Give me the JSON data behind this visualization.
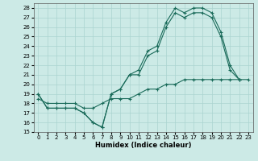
{
  "xlabel": "Humidex (Indice chaleur)",
  "bg_color": "#cceae6",
  "grid_color": "#aad4d0",
  "line_color": "#1a6b5a",
  "xlim": [
    -0.5,
    23.5
  ],
  "ylim": [
    15,
    28.5
  ],
  "xticks": [
    0,
    1,
    2,
    3,
    4,
    5,
    6,
    7,
    8,
    9,
    10,
    11,
    12,
    13,
    14,
    15,
    16,
    17,
    18,
    19,
    20,
    21,
    22,
    23
  ],
  "yticks": [
    15,
    16,
    17,
    18,
    19,
    20,
    21,
    22,
    23,
    24,
    25,
    26,
    27,
    28
  ],
  "series": [
    {
      "x": [
        0,
        1,
        2,
        3,
        4,
        5,
        6,
        7,
        8,
        9,
        10,
        11,
        12,
        13,
        14,
        15,
        16,
        17,
        18,
        19,
        20,
        21,
        22
      ],
      "y": [
        19,
        17.5,
        17.5,
        17.5,
        17.5,
        17,
        16,
        15.5,
        19,
        19.5,
        21,
        21.5,
        23.5,
        24,
        26.5,
        28,
        27.5,
        28,
        28,
        27.5,
        25.5,
        22,
        20.5
      ]
    },
    {
      "x": [
        0,
        1,
        2,
        3,
        4,
        5,
        6,
        7,
        8,
        9,
        10,
        11,
        12,
        13,
        14,
        15,
        16,
        17,
        18,
        19,
        20,
        21,
        22
      ],
      "y": [
        19,
        17.5,
        17.5,
        17.5,
        17.5,
        17,
        16,
        15.5,
        19,
        19.5,
        21,
        21,
        23,
        23.5,
        26,
        27.5,
        27,
        27.5,
        27.5,
        27,
        25,
        21.5,
        20.5
      ]
    },
    {
      "x": [
        0,
        1,
        2,
        3,
        4,
        5,
        6,
        7,
        8,
        9,
        10,
        11,
        12,
        13,
        14,
        15,
        16,
        17,
        18,
        19,
        20,
        21,
        22,
        23
      ],
      "y": [
        18.5,
        18,
        18,
        18,
        18,
        17.5,
        17.5,
        18,
        18.5,
        18.5,
        18.5,
        19,
        19.5,
        19.5,
        20,
        20,
        20.5,
        20.5,
        20.5,
        20.5,
        20.5,
        20.5,
        20.5,
        20.5
      ]
    }
  ]
}
